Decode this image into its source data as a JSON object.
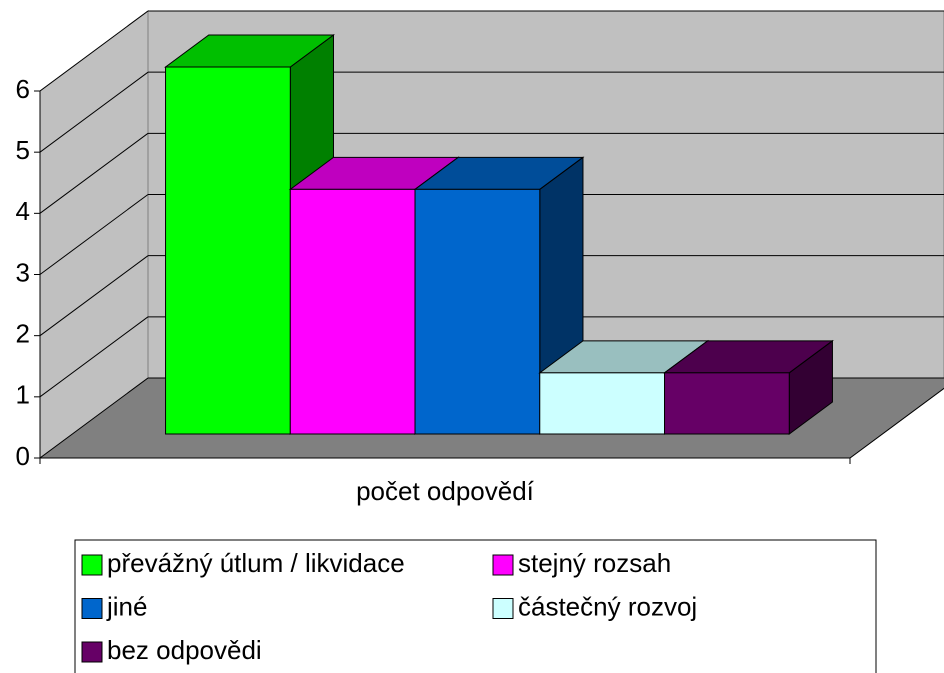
{
  "chart_data": {
    "type": "bar3d",
    "categories": [
      "počet odpovědí"
    ],
    "series": [
      {
        "name": "převážný útlum / likvidace",
        "color": "#00ff00",
        "values": [
          6
        ]
      },
      {
        "name": "stejný rozsah",
        "color": "#ff00ff",
        "values": [
          4
        ]
      },
      {
        "name": "jiné",
        "color": "#0066cc",
        "values": [
          4
        ]
      },
      {
        "name": "částečný rozvoj",
        "color": "#ccffff",
        "values": [
          1
        ]
      },
      {
        "name": "bez odpovědi",
        "color": "#660066",
        "values": [
          1
        ]
      }
    ],
    "ylim": [
      0,
      6
    ],
    "yticks": [
      0,
      1,
      2,
      3,
      4,
      5,
      6
    ],
    "grid": true,
    "legend": "bottom"
  }
}
